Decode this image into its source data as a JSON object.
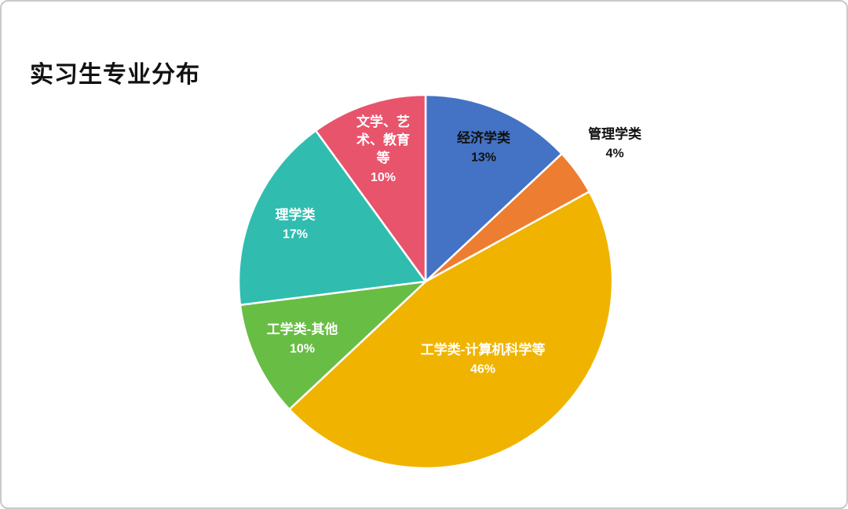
{
  "page": {
    "title": "实习生专业分布"
  },
  "chart_data": {
    "type": "pie",
    "title": "实习生专业分布",
    "start_angle_deg": 0,
    "direction": "clockwise",
    "legend": "none",
    "total": 100,
    "segments": [
      {
        "label": "经济学类",
        "value": 13,
        "percent_label": "13%",
        "color": "#4472C4",
        "text_color": "#111111",
        "label_inside": true,
        "label_r": 0.78,
        "label_width": 100
      },
      {
        "label": "管理学类",
        "value": 4,
        "percent_label": "4%",
        "color": "#ED7D31",
        "text_color": "#111111",
        "label_inside": false,
        "label_r": 1.25,
        "label_width": 110
      },
      {
        "label": "工学类-计算机科学等",
        "value": 46,
        "percent_label": "46%",
        "color": "#F0B400",
        "text_color": "#FFFFFF",
        "label_inside": true,
        "label_r": 0.52,
        "label_width": 220
      },
      {
        "label": "工学类-其他",
        "value": 10,
        "percent_label": "10%",
        "color": "#68BD45",
        "text_color": "#FFFFFF",
        "label_inside": true,
        "label_r": 0.73,
        "label_width": 120
      },
      {
        "label": "理学类",
        "value": 17,
        "percent_label": "17%",
        "color": "#30BDB0",
        "text_color": "#FFFFFF",
        "label_inside": true,
        "label_r": 0.76,
        "label_width": 100
      },
      {
        "label": "文学、艺术、教育等",
        "value": 10,
        "percent_label": "10%",
        "color": "#E8546B",
        "text_color": "#FFFFFF",
        "label_inside": true,
        "label_r": 0.74,
        "label_width": 74
      }
    ]
  }
}
